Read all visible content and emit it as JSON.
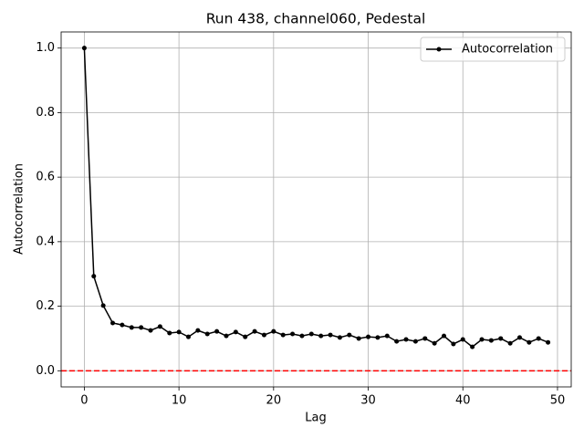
{
  "chart_data": {
    "type": "line",
    "title": "Run 438, channel060, Pedestal",
    "xlabel": "Lag",
    "ylabel": "Autocorrelation",
    "x": [
      0,
      1,
      2,
      3,
      4,
      5,
      6,
      7,
      8,
      9,
      10,
      11,
      12,
      13,
      14,
      15,
      16,
      17,
      18,
      19,
      20,
      21,
      22,
      23,
      24,
      25,
      26,
      27,
      28,
      29,
      30,
      31,
      32,
      33,
      34,
      35,
      36,
      37,
      38,
      39,
      40,
      41,
      42,
      43,
      44,
      45,
      46,
      47,
      48,
      49
    ],
    "series": [
      {
        "name": "Autocorrelation",
        "color": "#000000",
        "values": [
          1.0,
          0.293,
          0.202,
          0.148,
          0.142,
          0.134,
          0.134,
          0.125,
          0.137,
          0.117,
          0.12,
          0.105,
          0.125,
          0.114,
          0.122,
          0.108,
          0.12,
          0.105,
          0.122,
          0.111,
          0.122,
          0.111,
          0.114,
          0.108,
          0.114,
          0.108,
          0.111,
          0.103,
          0.111,
          0.1,
          0.105,
          0.103,
          0.108,
          0.091,
          0.097,
          0.091,
          0.1,
          0.085,
          0.108,
          0.083,
          0.097,
          0.074,
          0.097,
          0.094,
          0.1,
          0.085,
          0.103,
          0.088,
          0.1,
          0.088
        ]
      }
    ],
    "hline": {
      "value": 0,
      "color": "#ff0000"
    },
    "xlim": [
      -2.45,
      51.45
    ],
    "ylim": [
      -0.05,
      1.05
    ],
    "xticks": [
      0,
      10,
      20,
      30,
      40,
      50
    ],
    "yticks": [
      {
        "value": 0,
        "label": "0.0"
      },
      0.2,
      0.4,
      0.6,
      0.8,
      {
        "value": 1,
        "label": "1.0"
      }
    ],
    "grid": true,
    "legend": "upper right"
  }
}
